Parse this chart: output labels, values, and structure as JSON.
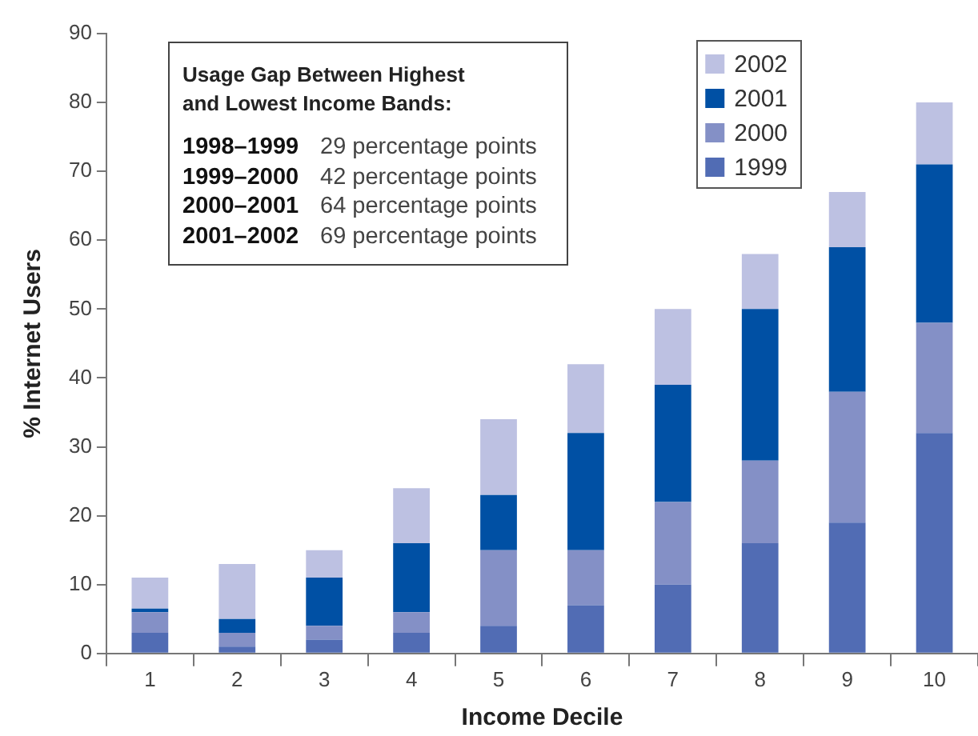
{
  "chart_data": {
    "type": "bar",
    "xlabel": "Income Decile",
    "ylabel": "% Internet Users",
    "categories": [
      "1",
      "2",
      "3",
      "4",
      "5",
      "6",
      "7",
      "8",
      "9",
      "10"
    ],
    "stacked": true,
    "series": [
      {
        "name": "1999",
        "color": "#516cb4",
        "values": [
          3,
          1,
          2,
          3,
          4,
          7,
          10,
          16,
          19,
          32
        ]
      },
      {
        "name": "2000",
        "color": "#8490c6",
        "values": [
          3,
          2,
          2,
          3,
          11,
          8,
          12,
          12,
          19,
          16
        ]
      },
      {
        "name": "2001",
        "color": "#0050a4",
        "values": [
          0.5,
          2,
          7,
          10,
          8,
          17,
          17,
          22,
          21,
          23
        ]
      },
      {
        "name": "2002",
        "color": "#bdc1e2",
        "values": [
          4.5,
          8,
          4,
          8,
          11,
          10,
          11,
          8,
          8,
          9
        ]
      }
    ],
    "ylim": [
      0,
      90
    ],
    "yticks": [
      0,
      10,
      20,
      30,
      40,
      50,
      60,
      70,
      80,
      90
    ],
    "legend": "top right",
    "annotations": [
      "Usage Gap Between Highest and Lowest Income Bands:",
      "1998–1999 29 percentage points",
      "1999–2000 42 percentage points",
      "2000–2001 64 percentage points",
      "2001–2002 69 percentage points"
    ]
  }
}
